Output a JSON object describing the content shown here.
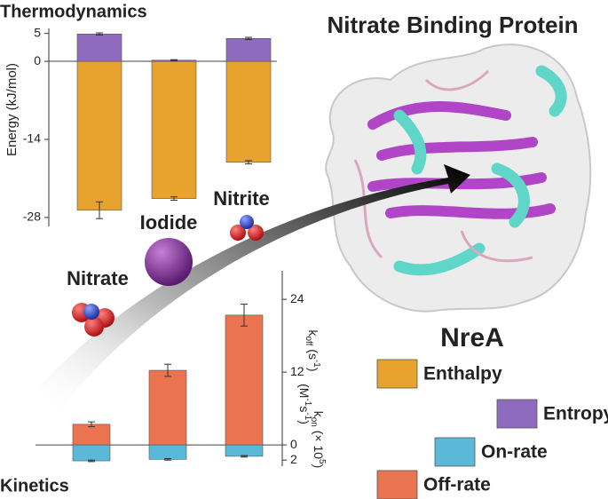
{
  "figure": {
    "title": "Nitrate Binding Protein",
    "protein": "NreA"
  },
  "chart_data": [
    {
      "type": "bar",
      "title": "Thermodynamics",
      "y_label": "Energy (kJ/mol)",
      "categories": [
        "Nitrate",
        "Iodide",
        "Nitrite"
      ],
      "series": [
        {
          "name": "Enthalpy",
          "color": "#e8a22e",
          "values": [
            -26.7,
            -24.6,
            -18.1
          ],
          "errors": [
            1.5,
            0.3,
            0.3
          ]
        },
        {
          "name": "Entropy",
          "color": "#8e6bbe",
          "values": [
            4.9,
            0.2,
            4.1
          ],
          "errors": [
            0.2,
            0.1,
            0.2
          ]
        }
      ],
      "ylim": [
        -29.6,
        5.9
      ],
      "yticks": [
        5,
        0,
        -14,
        -28
      ]
    },
    {
      "type": "bar",
      "title": "Kinetics",
      "y_label": [
        "k",
        "off",
        " (s",
        "-1",
        ")"
      ],
      "y2_label": [
        "k",
        "on",
        " (× 10",
        "5",
        ")",
        "(M",
        "-1",
        "s",
        "-1",
        ")"
      ],
      "categories": [
        null,
        null,
        null
      ],
      "series": [
        {
          "name": "Off-rate",
          "color": "#ea7350",
          "values": [
            3.4,
            12.3,
            21.4
          ],
          "errors": [
            0.4,
            1.0,
            1.8
          ]
        },
        {
          "name": "On-rate",
          "color": "#5bb8d8",
          "axis": "y2",
          "values": [
            2.1,
            1.9,
            1.5
          ],
          "errors": [
            0.1,
            0.1,
            0.1
          ]
        }
      ],
      "ylim": [
        -3.5,
        28.7
      ],
      "yticks": [
        0,
        12,
        24
      ],
      "y2lim": [
        2.8,
        -23.0
      ],
      "y2ticks": [
        2
      ]
    }
  ]
}
